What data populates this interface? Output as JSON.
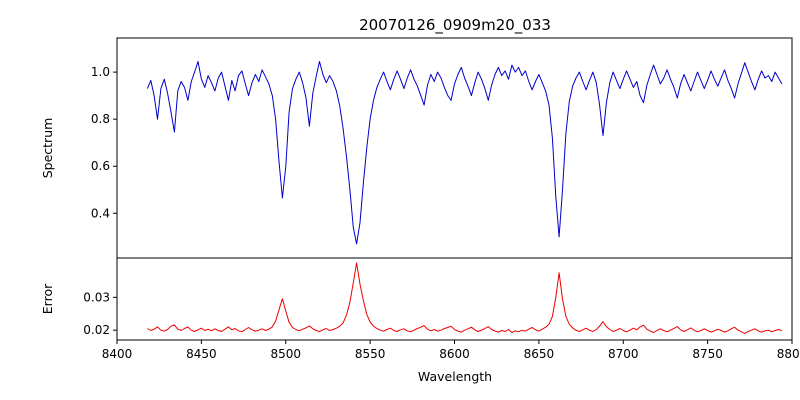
{
  "chart_data": {
    "type": "line",
    "title": "20070126_0909m20_033",
    "xlabel": "Wavelength",
    "grid": false,
    "legend": false,
    "xlim": [
      8400,
      8800
    ],
    "xticks": [
      8400,
      8450,
      8500,
      8550,
      8600,
      8650,
      8700,
      8750,
      8800
    ],
    "xtick_labels": [
      "8400",
      "8450",
      "8500",
      "8550",
      "8600",
      "8650",
      "8700",
      "8750",
      "8800"
    ],
    "x": [
      8418,
      8420,
      8422,
      8424,
      8426,
      8428,
      8430,
      8432,
      8434,
      8436,
      8438,
      8440,
      8442,
      8444,
      8446,
      8448,
      8450,
      8452,
      8454,
      8456,
      8458,
      8460,
      8462,
      8464,
      8466,
      8468,
      8470,
      8472,
      8474,
      8476,
      8478,
      8480,
      8482,
      8484,
      8486,
      8488,
      8490,
      8492,
      8494,
      8496,
      8498,
      8500,
      8502,
      8504,
      8506,
      8508,
      8510,
      8512,
      8514,
      8516,
      8518,
      8520,
      8522,
      8524,
      8526,
      8528,
      8530,
      8532,
      8534,
      8536,
      8538,
      8540,
      8542,
      8544,
      8546,
      8548,
      8550,
      8552,
      8554,
      8556,
      8558,
      8560,
      8562,
      8564,
      8566,
      8568,
      8570,
      8572,
      8574,
      8576,
      8578,
      8580,
      8582,
      8584,
      8586,
      8588,
      8590,
      8592,
      8594,
      8596,
      8598,
      8600,
      8602,
      8604,
      8606,
      8608,
      8610,
      8612,
      8614,
      8616,
      8618,
      8620,
      8622,
      8624,
      8626,
      8628,
      8630,
      8632,
      8634,
      8636,
      8638,
      8640,
      8642,
      8644,
      8646,
      8648,
      8650,
      8652,
      8654,
      8656,
      8658,
      8660,
      8662,
      8664,
      8666,
      8668,
      8670,
      8672,
      8674,
      8676,
      8678,
      8680,
      8682,
      8684,
      8686,
      8688,
      8690,
      8692,
      8694,
      8696,
      8698,
      8700,
      8702,
      8704,
      8706,
      8708,
      8710,
      8712,
      8714,
      8716,
      8718,
      8720,
      8722,
      8724,
      8726,
      8728,
      8730,
      8732,
      8734,
      8736,
      8738,
      8740,
      8742,
      8744,
      8746,
      8748,
      8750,
      8752,
      8754,
      8756,
      8758,
      8760,
      8762,
      8764,
      8766,
      8768,
      8770,
      8772,
      8774,
      8776,
      8778,
      8780,
      8782,
      8784,
      8786,
      8788,
      8790,
      8792,
      8794
    ],
    "subplots": [
      {
        "name": "spectrum",
        "ylabel": "Spectrum",
        "ylim": [
          0.21,
          1.145
        ],
        "yticks": [
          0.4,
          0.6,
          0.8,
          1.0
        ],
        "ytick_labels": [
          "0.4",
          "0.6",
          "0.8",
          "1.0"
        ],
        "series": [
          {
            "name": "spectrum",
            "color": "#0000cc",
            "values": [
              0.93,
              0.965,
              0.9,
              0.8,
              0.93,
              0.97,
              0.91,
              0.83,
              0.745,
              0.92,
              0.96,
              0.935,
              0.88,
              0.96,
              1.0,
              1.045,
              0.97,
              0.935,
              0.985,
              0.955,
              0.92,
              0.975,
              1.0,
              0.94,
              0.88,
              0.965,
              0.92,
              0.985,
              1.005,
              0.95,
              0.9,
              0.955,
              0.99,
              0.96,
              1.01,
              0.98,
              0.95,
              0.9,
              0.8,
              0.62,
              0.465,
              0.6,
              0.83,
              0.93,
              0.97,
              1.0,
              0.955,
              0.89,
              0.77,
              0.91,
              0.98,
              1.045,
              0.99,
              0.955,
              0.985,
              0.96,
              0.92,
              0.855,
              0.76,
              0.64,
              0.5,
              0.34,
              0.27,
              0.36,
              0.53,
              0.68,
              0.8,
              0.88,
              0.935,
              0.97,
              1.0,
              0.96,
              0.925,
              0.97,
              1.005,
              0.97,
              0.93,
              0.975,
              1.01,
              0.97,
              0.94,
              0.9,
              0.86,
              0.945,
              0.99,
              0.96,
              1.0,
              0.975,
              0.935,
              0.9,
              0.88,
              0.95,
              0.99,
              1.02,
              0.975,
              0.94,
              0.9,
              0.955,
              1.0,
              0.97,
              0.93,
              0.88,
              0.945,
              0.99,
              1.02,
              0.985,
              1.005,
              0.97,
              1.03,
              1.0,
              1.02,
              0.985,
              1.005,
              0.96,
              0.925,
              0.96,
              0.99,
              0.955,
              0.92,
              0.86,
              0.72,
              0.47,
              0.3,
              0.5,
              0.74,
              0.875,
              0.94,
              0.975,
              1.0,
              0.96,
              0.925,
              0.965,
              1.0,
              0.955,
              0.86,
              0.73,
              0.87,
              0.955,
              1.0,
              0.965,
              0.93,
              0.97,
              1.005,
              0.97,
              0.935,
              0.96,
              0.9,
              0.87,
              0.945,
              0.99,
              1.03,
              0.99,
              0.95,
              0.975,
              1.01,
              0.97,
              0.935,
              0.89,
              0.95,
              0.99,
              0.955,
              0.92,
              0.96,
              1.0,
              0.965,
              0.93,
              0.965,
              1.005,
              0.97,
              0.94,
              0.975,
              1.01,
              0.965,
              0.93,
              0.89,
              0.95,
              0.995,
              1.04,
              1.0,
              0.96,
              0.925,
              0.97,
              1.005,
              0.975,
              0.985,
              0.96,
              1.0,
              0.975,
              0.95
            ]
          }
        ]
      },
      {
        "name": "error",
        "ylabel": "Error",
        "ylim": [
          0.017,
          0.042
        ],
        "yticks": [
          0.02,
          0.03
        ],
        "ytick_labels": [
          "0.02",
          "0.03"
        ],
        "series": [
          {
            "name": "error",
            "color": "#ee0000",
            "values": [
              0.0205,
              0.0199,
              0.0203,
              0.021,
              0.02,
              0.0197,
              0.0202,
              0.0212,
              0.0216,
              0.0203,
              0.0199,
              0.0205,
              0.021,
              0.02,
              0.0196,
              0.0201,
              0.0206,
              0.0199,
              0.0203,
              0.0198,
              0.0204,
              0.0199,
              0.0196,
              0.0203,
              0.021,
              0.0201,
              0.0205,
              0.0198,
              0.0195,
              0.0202,
              0.0208,
              0.0201,
              0.0197,
              0.02,
              0.0204,
              0.0199,
              0.0203,
              0.021,
              0.0228,
              0.0262,
              0.0296,
              0.0258,
              0.0224,
              0.0208,
              0.0202,
              0.0198,
              0.0203,
              0.0207,
              0.0213,
              0.0204,
              0.0199,
              0.0196,
              0.0201,
              0.0205,
              0.0199,
              0.0202,
              0.0206,
              0.0212,
              0.0222,
              0.0246,
              0.0285,
              0.0345,
              0.0405,
              0.034,
              0.029,
              0.0248,
              0.0225,
              0.0212,
              0.0205,
              0.02,
              0.0197,
              0.0202,
              0.0206,
              0.0199,
              0.0196,
              0.0201,
              0.0204,
              0.0198,
              0.0195,
              0.02,
              0.0205,
              0.0209,
              0.0214,
              0.0203,
              0.0198,
              0.0202,
              0.0197,
              0.02,
              0.0205,
              0.0208,
              0.0212,
              0.0202,
              0.0197,
              0.0194,
              0.02,
              0.0204,
              0.0209,
              0.0201,
              0.0196,
              0.02,
              0.0205,
              0.0211,
              0.0202,
              0.0197,
              0.0194,
              0.0199,
              0.0196,
              0.0202,
              0.0193,
              0.0198,
              0.0195,
              0.02,
              0.0197,
              0.0203,
              0.0208,
              0.0201,
              0.0197,
              0.0203,
              0.0209,
              0.0218,
              0.0242,
              0.03,
              0.0375,
              0.0295,
              0.0242,
              0.0218,
              0.0207,
              0.02,
              0.0196,
              0.0201,
              0.0206,
              0.02,
              0.0196,
              0.0202,
              0.0212,
              0.0226,
              0.0211,
              0.0202,
              0.0196,
              0.02,
              0.0205,
              0.0199,
              0.0195,
              0.02,
              0.0206,
              0.0201,
              0.021,
              0.0215,
              0.0203,
              0.0197,
              0.0193,
              0.0199,
              0.0204,
              0.0199,
              0.0195,
              0.02,
              0.0205,
              0.0211,
              0.0201,
              0.0196,
              0.0201,
              0.0207,
              0.02,
              0.0195,
              0.0199,
              0.0204,
              0.0199,
              0.0194,
              0.0198,
              0.0203,
              0.0199,
              0.0194,
              0.0198,
              0.0204,
              0.0209,
              0.02,
              0.0195,
              0.019,
              0.0196,
              0.02,
              0.0204,
              0.0198,
              0.0194,
              0.0198,
              0.02,
              0.0195,
              0.0199,
              0.0202,
              0.0198
            ]
          }
        ]
      }
    ]
  }
}
